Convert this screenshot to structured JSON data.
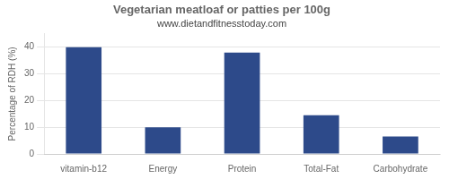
{
  "chart_data": {
    "type": "bar",
    "title": "Vegetarian meatloaf or patties per 100g",
    "subtitle": "www.dietandfitnesstoday.com",
    "ylabel": "Percentage of RDH (%)",
    "categories": [
      "vitamin-b12",
      "Energy",
      "Protein",
      "Total-Fat",
      "Carbohydrate"
    ],
    "values": [
      40,
      10,
      38,
      14.5,
      6.5
    ],
    "color": "#2d4a8a",
    "ylim": [
      0,
      45
    ],
    "yticks": [
      0,
      10,
      20,
      30,
      40
    ],
    "grid": true
  }
}
